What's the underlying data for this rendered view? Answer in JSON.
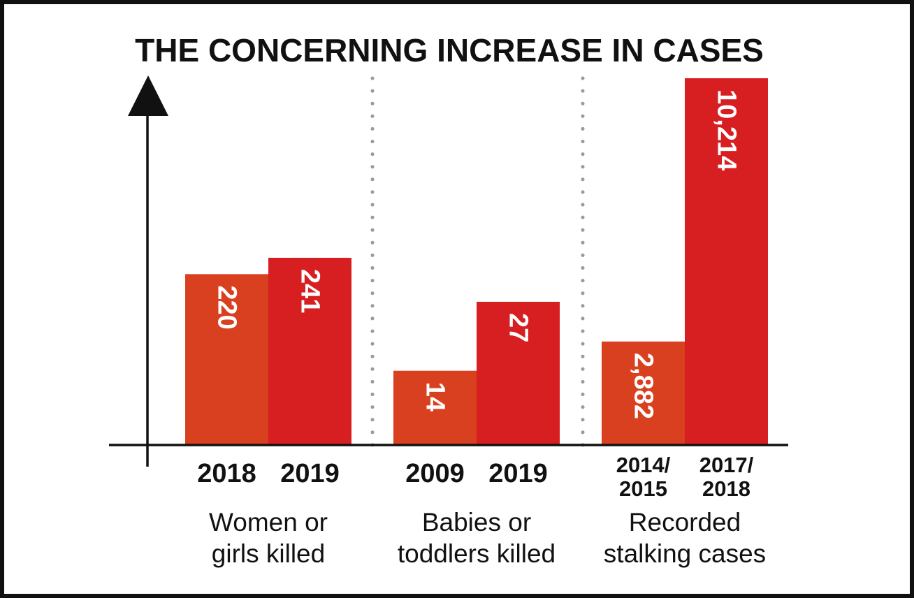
{
  "chart_data": {
    "type": "bar",
    "title": "THE CONCERNING INCREASE IN CASES",
    "colors": {
      "earlier": "#d9401f",
      "later": "#d71f21",
      "axis": "#111111",
      "divider": "#9a9a9a"
    },
    "groups": [
      {
        "label_lines": [
          "Women or",
          "girls killed"
        ],
        "bars": [
          {
            "category": [
              "2018"
            ],
            "value": 220,
            "value_label": "220"
          },
          {
            "category": [
              "2019"
            ],
            "value": 241,
            "value_label": "241"
          }
        ]
      },
      {
        "label_lines": [
          "Babies or",
          "toddlers killed"
        ],
        "bars": [
          {
            "category": [
              "2009"
            ],
            "value": 14,
            "value_label": "14"
          },
          {
            "category": [
              "2019"
            ],
            "value": 27,
            "value_label": "27"
          }
        ]
      },
      {
        "label_lines": [
          "Recorded",
          "stalking cases"
        ],
        "bars": [
          {
            "category": [
              "2014/",
              "2015"
            ],
            "value": 2882,
            "value_label": "2,882"
          },
          {
            "category": [
              "2017/",
              "2018"
            ],
            "value": 10214,
            "value_label": "10,214"
          }
        ]
      }
    ]
  }
}
